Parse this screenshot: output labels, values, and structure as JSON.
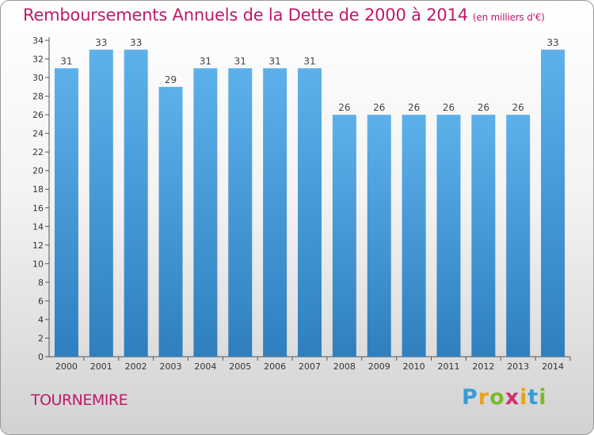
{
  "header": {
    "title": "Remboursements Annuels de la Dette de 2000 à 2014",
    "subtitle": "(en milliers d'€)"
  },
  "commune": "TOURNEMIRE",
  "brand": {
    "name": "Proxiti",
    "letters": [
      {
        "ch": "P",
        "color": "#3a9bd5"
      },
      {
        "ch": "r",
        "color": "#e8a21b"
      },
      {
        "ch": "o",
        "color": "#7ab929"
      },
      {
        "ch": "x",
        "color": "#d12f6e"
      },
      {
        "ch": "i",
        "color": "#e8a21b"
      },
      {
        "ch": "t",
        "color": "#3a9bd5"
      },
      {
        "ch": "i",
        "color": "#7ab929"
      }
    ]
  },
  "colors": {
    "title": "#c0186a",
    "bar_top": "#5db1ea",
    "bar_bottom": "#2f7fbf",
    "axis": "#555555"
  },
  "chart_data": {
    "type": "bar",
    "title": "Remboursements Annuels de la Dette de 2000 à 2014",
    "subtitle": "(en milliers d'€)",
    "xlabel": "",
    "ylabel": "",
    "categories": [
      "2000",
      "2001",
      "2002",
      "2003",
      "2004",
      "2005",
      "2006",
      "2007",
      "2008",
      "2009",
      "2010",
      "2011",
      "2012",
      "2013",
      "2014"
    ],
    "values": [
      31,
      33,
      33,
      29,
      31,
      31,
      31,
      31,
      26,
      26,
      26,
      26,
      26,
      26,
      33
    ],
    "ylim": [
      0,
      34
    ],
    "yticks": [
      0,
      2,
      4,
      6,
      8,
      10,
      12,
      14,
      16,
      18,
      20,
      22,
      24,
      26,
      28,
      30,
      32,
      34
    ],
    "grid": false,
    "data_labels": true
  }
}
